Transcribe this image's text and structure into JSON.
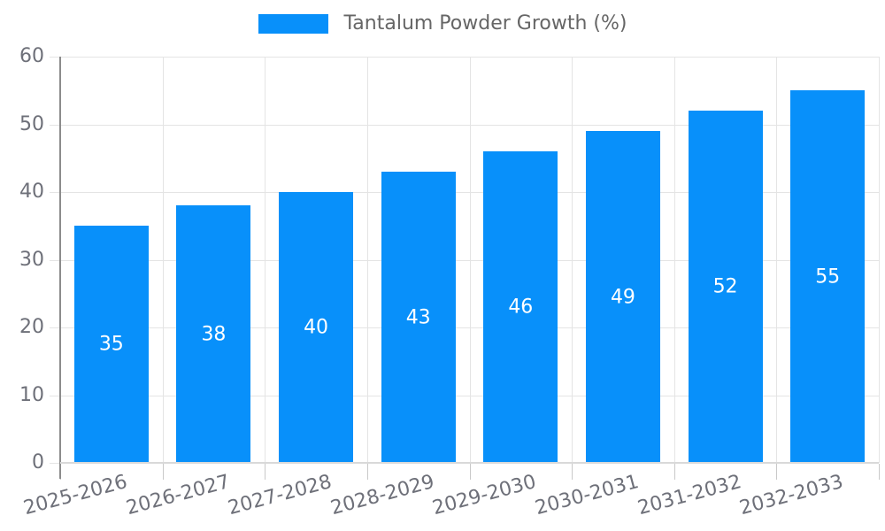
{
  "legend": {
    "label": "Tantalum Powder Growth (%)"
  },
  "colors": {
    "bar": "#0890FA",
    "bar_label": "#FFFFFF",
    "axis_text": "#6E7079",
    "legend_text": "#666666",
    "grid": "#E4E4E4",
    "baseline": "#D9D9D9",
    "axis_line": "#8C8C8C",
    "tick": "#C9C9C9",
    "background": "#FFFFFF"
  },
  "chart_data": {
    "type": "bar",
    "title": "",
    "categories": [
      "2025-2026",
      "2026-2027",
      "2027-2028",
      "2028-2029",
      "2029-2030",
      "2030-2031",
      "2031-2032",
      "2032-2033"
    ],
    "series": [
      {
        "name": "Tantalum Powder Growth (%)",
        "values": [
          35,
          38,
          40,
          43,
          46,
          49,
          52,
          55
        ]
      }
    ],
    "xlabel": "",
    "ylabel": "",
    "ylim": [
      0,
      60
    ],
    "yticks": [
      0,
      10,
      20,
      30,
      40,
      50,
      60
    ],
    "grid": true,
    "legend_position": "top",
    "data_labels": "inside-center",
    "x_label_rotation": -15
  }
}
